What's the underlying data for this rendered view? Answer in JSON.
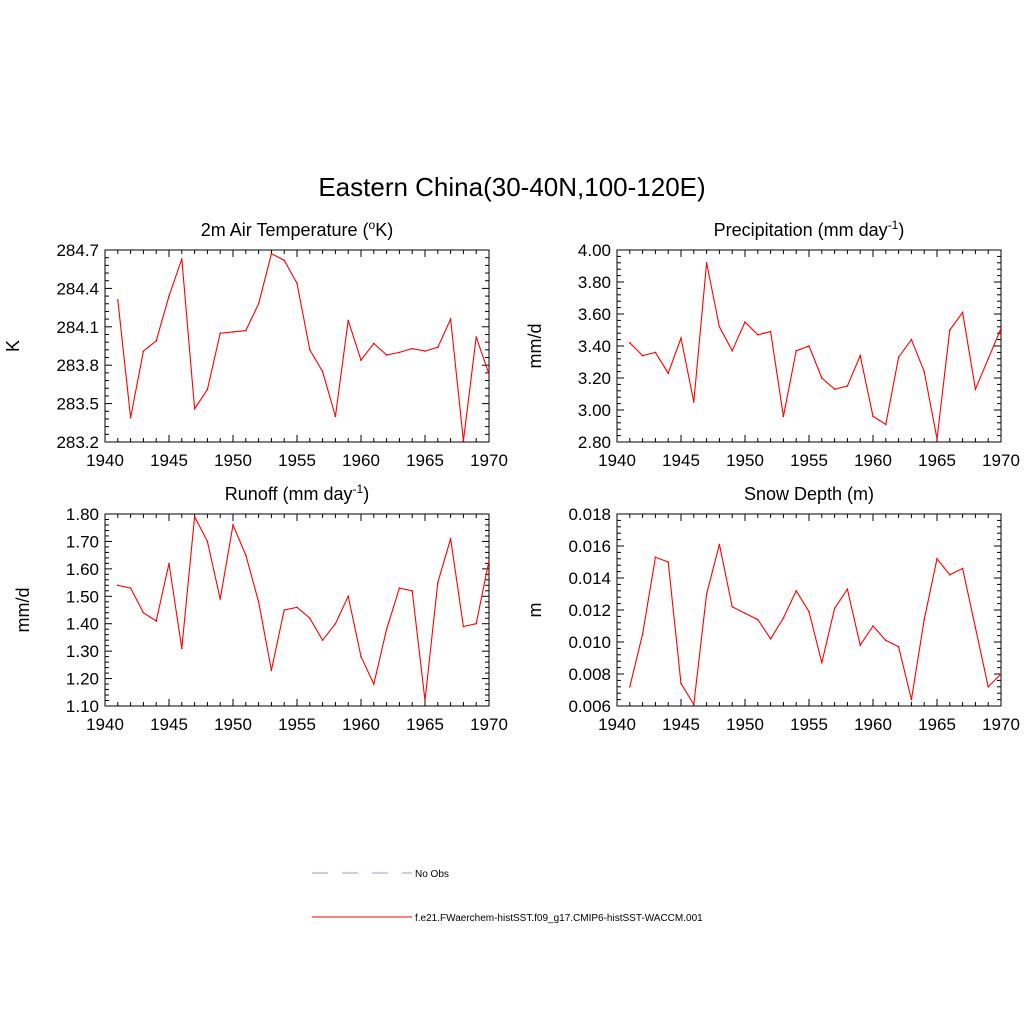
{
  "title": "Eastern China(30-40N,100-120E)",
  "colors": {
    "model_line": "#ff0000",
    "obs_line": "#9999ee",
    "axis": "#000000"
  },
  "legend": [
    {
      "label": "No Obs",
      "style": "dashed",
      "color": "#9999ee"
    },
    {
      "label": "f.e21.FWaerchem-histSST.f09_g17.CMIP6-histSST-WACCM.001",
      "style": "solid",
      "color": "#ff0000"
    }
  ],
  "chart_data": [
    {
      "type": "line",
      "title_main": "2m Air Temperature (",
      "title_sup": "o",
      "title_tail": "K)",
      "ylabel": "K",
      "xlim": [
        1940,
        1970
      ],
      "ylim": [
        283.2,
        284.7
      ],
      "xticks": [
        1940,
        1945,
        1950,
        1955,
        1960,
        1965,
        1970
      ],
      "yticks": [
        283.2,
        283.5,
        283.8,
        284.1,
        284.4,
        284.7
      ],
      "ytick_labels": [
        "283.2",
        "283.5",
        "283.8",
        "284.1",
        "284.4",
        "284.7"
      ],
      "series": [
        {
          "x": [
            1941,
            1942,
            1943,
            1944,
            1945,
            1946,
            1947,
            1948,
            1949,
            1950,
            1951,
            1952,
            1953,
            1954,
            1955,
            1956,
            1957,
            1958,
            1959,
            1960,
            1961,
            1962,
            1963,
            1964,
            1965,
            1966,
            1967,
            1968,
            1969,
            1970
          ],
          "values": [
            284.31,
            283.39,
            283.91,
            283.99,
            284.34,
            284.63,
            283.46,
            283.61,
            284.05,
            284.06,
            284.07,
            284.28,
            284.67,
            284.62,
            284.44,
            283.92,
            283.75,
            283.4,
            284.15,
            283.84,
            283.97,
            283.88,
            283.9,
            283.93,
            283.91,
            283.94,
            284.16,
            283.21,
            284.02,
            283.73
          ]
        }
      ]
    },
    {
      "type": "line",
      "title_main": "Precipitation (mm day",
      "title_sup": "-1",
      "title_tail": ")",
      "ylabel": "mm/d",
      "xlim": [
        1940,
        1970
      ],
      "ylim": [
        2.8,
        4.0
      ],
      "xticks": [
        1940,
        1945,
        1950,
        1955,
        1960,
        1965,
        1970
      ],
      "yticks": [
        2.8,
        3.0,
        3.2,
        3.4,
        3.6,
        3.8,
        4.0
      ],
      "ytick_labels": [
        "2.80",
        "3.00",
        "3.20",
        "3.40",
        "3.60",
        "3.80",
        "4.00"
      ],
      "series": [
        {
          "x": [
            1941,
            1942,
            1943,
            1944,
            1945,
            1946,
            1947,
            1948,
            1949,
            1950,
            1951,
            1952,
            1953,
            1954,
            1955,
            1956,
            1957,
            1958,
            1959,
            1960,
            1961,
            1962,
            1963,
            1964,
            1965,
            1966,
            1967,
            1968,
            1969,
            1970
          ],
          "values": [
            3.42,
            3.34,
            3.36,
            3.23,
            3.45,
            3.05,
            3.92,
            3.52,
            3.37,
            3.55,
            3.47,
            3.49,
            2.96,
            3.37,
            3.4,
            3.2,
            3.13,
            3.15,
            3.34,
            2.96,
            2.91,
            3.33,
            3.44,
            3.24,
            2.82,
            3.5,
            3.61,
            3.13,
            3.32,
            3.51
          ]
        }
      ]
    },
    {
      "type": "line",
      "title_main": "Runoff (mm day",
      "title_sup": "-1",
      "title_tail": ")",
      "ylabel": "mm/d",
      "xlim": [
        1940,
        1970
      ],
      "ylim": [
        1.1,
        1.8
      ],
      "xticks": [
        1940,
        1945,
        1950,
        1955,
        1960,
        1965,
        1970
      ],
      "yticks": [
        1.1,
        1.2,
        1.3,
        1.4,
        1.5,
        1.6,
        1.7,
        1.8
      ],
      "ytick_labels": [
        "1.10",
        "1.20",
        "1.30",
        "1.40",
        "1.50",
        "1.60",
        "1.70",
        "1.80"
      ],
      "series": [
        {
          "x": [
            1941,
            1942,
            1943,
            1944,
            1945,
            1946,
            1947,
            1948,
            1949,
            1950,
            1951,
            1952,
            1953,
            1954,
            1955,
            1956,
            1957,
            1958,
            1959,
            1960,
            1961,
            1962,
            1963,
            1964,
            1965,
            1966,
            1967,
            1968,
            1969,
            1970
          ],
          "values": [
            1.54,
            1.53,
            1.44,
            1.41,
            1.62,
            1.31,
            1.79,
            1.7,
            1.49,
            1.76,
            1.65,
            1.48,
            1.23,
            1.45,
            1.46,
            1.42,
            1.34,
            1.4,
            1.5,
            1.28,
            1.18,
            1.38,
            1.53,
            1.52,
            1.12,
            1.55,
            1.71,
            1.39,
            1.4,
            1.63
          ]
        }
      ]
    },
    {
      "type": "line",
      "title_main": "Snow Depth (m)",
      "title_sup": "",
      "title_tail": "",
      "ylabel": "m",
      "xlim": [
        1940,
        1970
      ],
      "ylim": [
        0.006,
        0.018
      ],
      "xticks": [
        1940,
        1945,
        1950,
        1955,
        1960,
        1965,
        1970
      ],
      "yticks": [
        0.006,
        0.008,
        0.01,
        0.012,
        0.014,
        0.016,
        0.018
      ],
      "ytick_labels": [
        "0.006",
        "0.008",
        "0.010",
        "0.012",
        "0.014",
        "0.016",
        "0.018"
      ],
      "series": [
        {
          "x": [
            1941,
            1942,
            1943,
            1944,
            1945,
            1946,
            1947,
            1948,
            1949,
            1950,
            1951,
            1952,
            1953,
            1954,
            1955,
            1956,
            1957,
            1958,
            1959,
            1960,
            1961,
            1962,
            1963,
            1964,
            1965,
            1966,
            1967,
            1968,
            1969,
            1970
          ],
          "values": [
            0.0072,
            0.0105,
            0.0153,
            0.015,
            0.0074,
            0.0061,
            0.013,
            0.0161,
            0.0122,
            0.0118,
            0.0114,
            0.0102,
            0.0115,
            0.0132,
            0.0119,
            0.0087,
            0.0121,
            0.0133,
            0.0098,
            0.011,
            0.0101,
            0.0097,
            0.0064,
            0.0114,
            0.0152,
            0.0142,
            0.0146,
            0.0109,
            0.0072,
            0.008
          ]
        }
      ]
    }
  ]
}
